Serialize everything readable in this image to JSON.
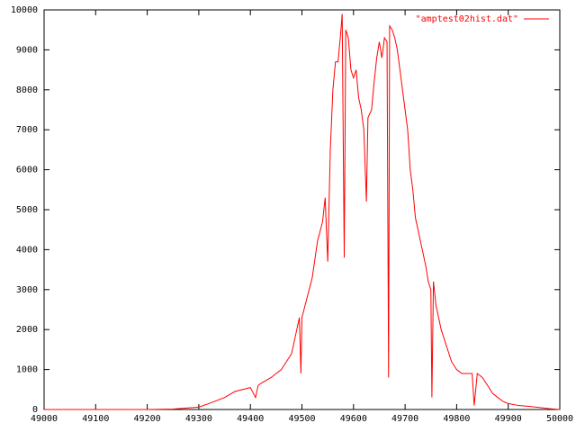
{
  "chart_data": {
    "type": "line",
    "series": [
      {
        "name": "\"amptest02hist.dat\"",
        "color": "#ff0000",
        "x": [
          49000,
          49100,
          49200,
          49250,
          49300,
          49320,
          49350,
          49370,
          49400,
          49410,
          49415,
          49420,
          49440,
          49460,
          49480,
          49490,
          49495,
          49498,
          49500,
          49510,
          49520,
          49530,
          49540,
          49545,
          49550,
          49555,
          49560,
          49565,
          49570,
          49575,
          49578,
          49582,
          49585,
          49590,
          49595,
          49600,
          49605,
          49610,
          49615,
          49620,
          49625,
          49628,
          49635,
          49640,
          49645,
          49650,
          49655,
          49660,
          49665,
          49668,
          49670,
          49675,
          49680,
          49685,
          49690,
          49695,
          49700,
          49705,
          49710,
          49715,
          49720,
          49730,
          49740,
          49745,
          49750,
          49752,
          49755,
          49760,
          49770,
          49780,
          49790,
          49800,
          49810,
          49820,
          49830,
          49834,
          49840,
          49850,
          49860,
          49870,
          49880,
          49890,
          49900,
          49920,
          49940,
          49960,
          49980,
          50000
        ],
        "values": [
          0,
          0,
          0,
          10,
          60,
          150,
          300,
          450,
          550,
          300,
          600,
          650,
          800,
          1000,
          1400,
          2000,
          2300,
          900,
          2300,
          2800,
          3300,
          4200,
          4700,
          5300,
          3700,
          6500,
          8000,
          8700,
          8700,
          9400,
          9900,
          3800,
          9500,
          9300,
          8500,
          8300,
          8500,
          7800,
          7500,
          7000,
          5200,
          7300,
          7500,
          8200,
          8800,
          9200,
          8800,
          9300,
          9200,
          800,
          9600,
          9500,
          9300,
          9000,
          8500,
          8000,
          7500,
          7000,
          6000,
          5500,
          4800,
          4200,
          3600,
          3200,
          3000,
          300,
          3200,
          2600,
          2000,
          1600,
          1200,
          1000,
          900,
          900,
          900,
          100,
          900,
          800,
          600,
          400,
          300,
          200,
          150,
          100,
          80,
          50,
          20,
          0
        ]
      }
    ],
    "xlim": [
      49000,
      50000
    ],
    "xticks": [
      49000,
      49100,
      49200,
      49300,
      49400,
      49500,
      49600,
      49700,
      49800,
      49900,
      50000
    ],
    "ylim": [
      0,
      10000
    ],
    "yticks": [
      0,
      1000,
      2000,
      3000,
      4000,
      5000,
      6000,
      7000,
      8000,
      9000,
      10000
    ],
    "legend": "top-right"
  }
}
